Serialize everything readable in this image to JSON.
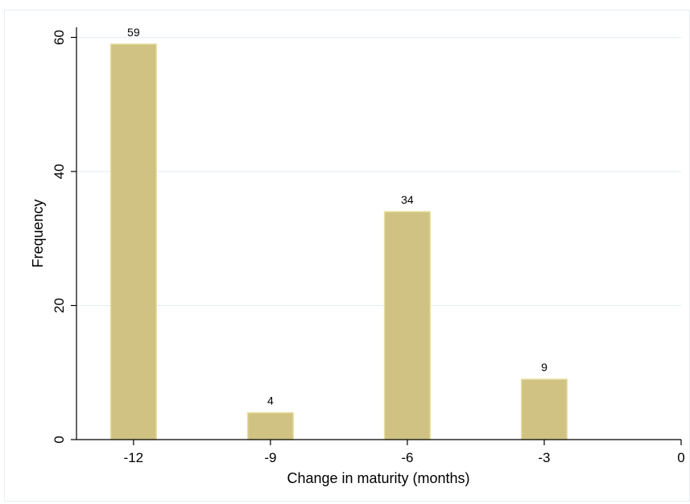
{
  "chart_data": {
    "type": "bar",
    "xlabel": "Change in maturity (months)",
    "ylabel": "Frequency",
    "x_ticks": [
      "-12",
      "-9",
      "-6",
      "-3",
      "0"
    ],
    "y_ticks": [
      "0",
      "20",
      "40",
      "60"
    ],
    "xlim": [
      -13.25,
      0
    ],
    "ylim": [
      0,
      61.5
    ],
    "bar_width": 1,
    "grid": "horizontal",
    "legend": "none",
    "bar_color": "#cfc283",
    "bar_edge_color": "#e7df9f",
    "grid_color": "#e9eff2",
    "x": [
      -12,
      -9,
      -6,
      -3
    ],
    "values": [
      59,
      4,
      34,
      9
    ],
    "labels": [
      "59",
      "4",
      "34",
      "9"
    ]
  }
}
